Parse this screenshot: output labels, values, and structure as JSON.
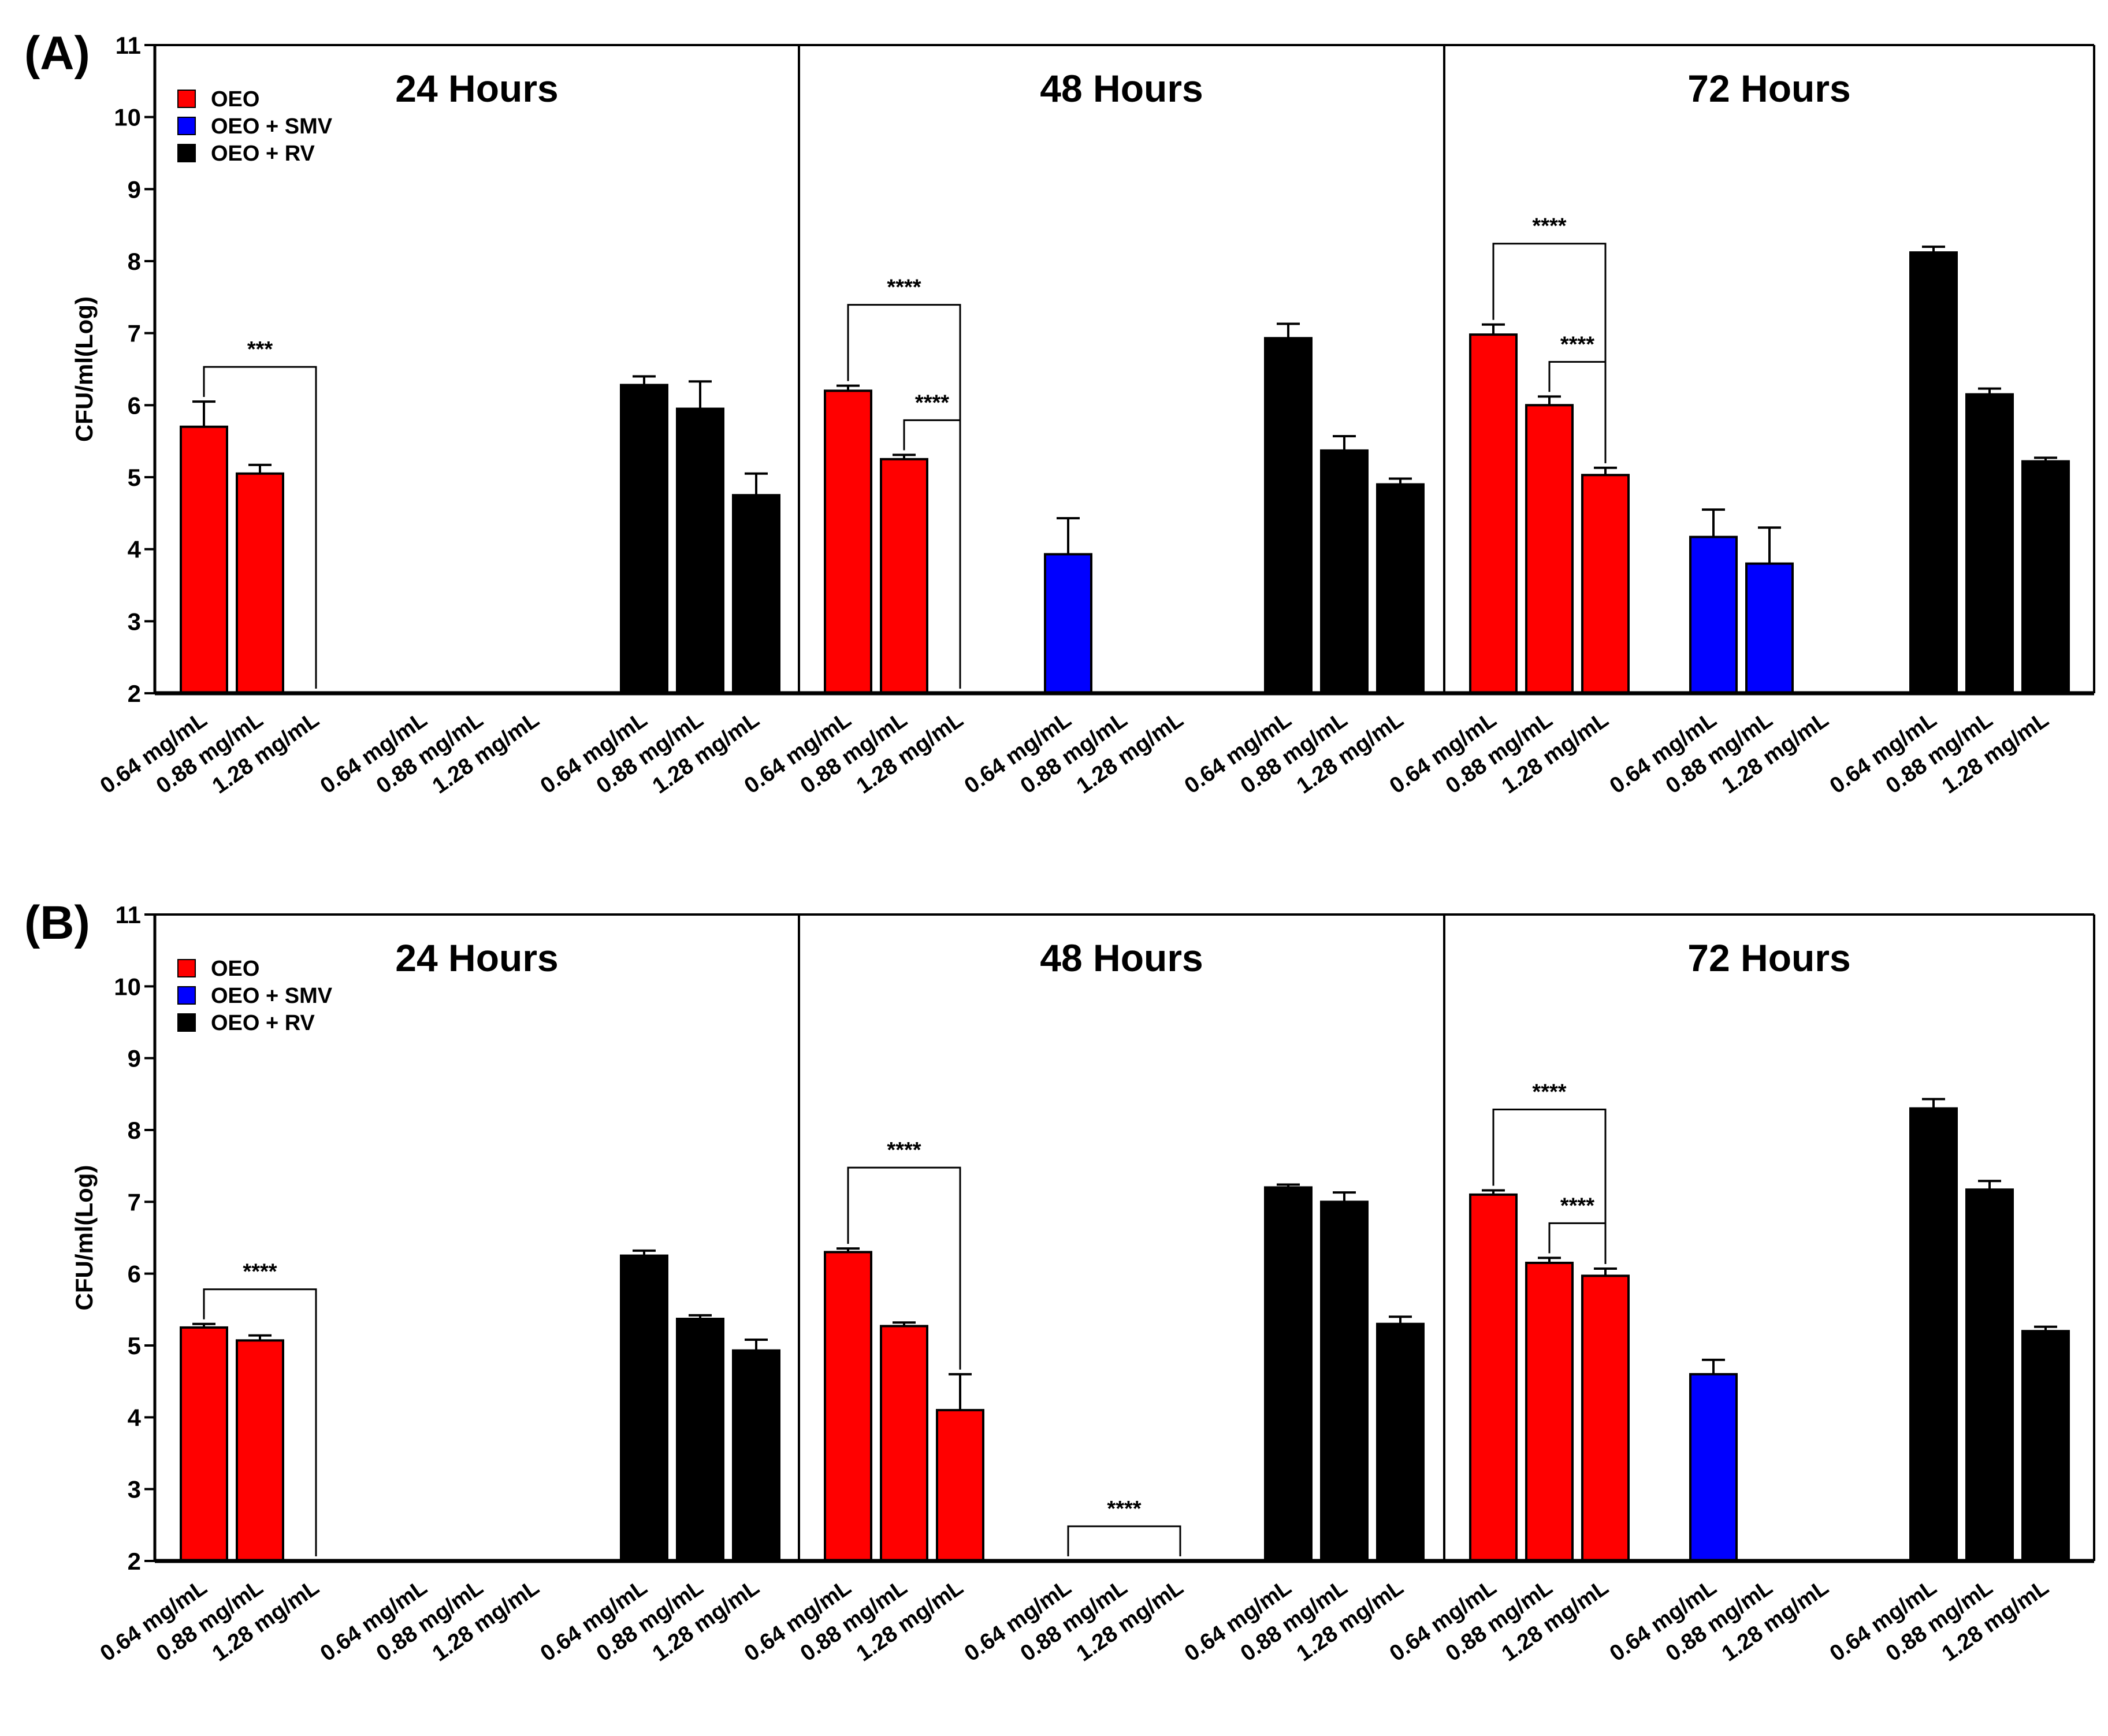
{
  "chart_data": [
    {
      "panel": "(A)",
      "type": "bar",
      "ylabel": "CFU/ml(Log)",
      "ylim": [
        2,
        11
      ],
      "yticks": [
        2,
        3,
        4,
        5,
        6,
        7,
        8,
        9,
        10,
        11
      ],
      "legend": [
        {
          "label": "OEO",
          "color": "#ff0000"
        },
        {
          "label": "OEO + SMV",
          "color": "#0000ff"
        },
        {
          "label": "OEO + RV",
          "color": "#000000"
        }
      ],
      "categories": [
        "0.64 mg/mL",
        "0.88 mg/mL",
        "1.28 mg/mL"
      ],
      "groups": [
        {
          "title": "24 Hours",
          "series": [
            {
              "name": "OEO",
              "values": [
                5.7,
                5.05,
                null
              ],
              "errors": [
                0.35,
                0.12,
                null
              ]
            },
            {
              "name": "OEO + SMV",
              "values": [
                null,
                null,
                null
              ],
              "errors": [
                null,
                null,
                null
              ]
            },
            {
              "name": "OEO + RV",
              "values": [
                6.28,
                5.95,
                4.75
              ],
              "errors": [
                0.12,
                0.38,
                0.3
              ]
            }
          ],
          "brackets": [
            {
              "from": [
                0,
                0
              ],
              "to": [
                2,
                0
              ],
              "label": "***"
            }
          ]
        },
        {
          "title": "48 Hours",
          "series": [
            {
              "name": "OEO",
              "values": [
                6.2,
                5.25,
                null
              ],
              "errors": [
                0.07,
                0.06,
                null
              ]
            },
            {
              "name": "OEO + SMV",
              "values": [
                3.93,
                null,
                null
              ],
              "errors": [
                0.5,
                null,
                null
              ]
            },
            {
              "name": "OEO + RV",
              "values": [
                6.93,
                5.37,
                4.9
              ],
              "errors": [
                0.2,
                0.2,
                0.08
              ]
            }
          ],
          "brackets": [
            {
              "from": [
                0,
                0
              ],
              "to": [
                2,
                0
              ],
              "label": "****"
            },
            {
              "from": [
                1,
                0
              ],
              "to": [
                2,
                0
              ],
              "label": "****"
            }
          ]
        },
        {
          "title": "72 Hours",
          "series": [
            {
              "name": "OEO",
              "values": [
                6.98,
                6.0,
                5.03
              ],
              "errors": [
                0.14,
                0.12,
                0.1
              ]
            },
            {
              "name": "OEO + SMV",
              "values": [
                4.17,
                3.8,
                null
              ],
              "errors": [
                0.38,
                0.5,
                null
              ]
            },
            {
              "name": "OEO + RV",
              "values": [
                8.12,
                6.15,
                5.22
              ],
              "errors": [
                0.08,
                0.08,
                0.05
              ]
            }
          ],
          "brackets": [
            {
              "from": [
                0,
                0
              ],
              "to": [
                2,
                0
              ],
              "label": "****"
            },
            {
              "from": [
                1,
                0
              ],
              "to": [
                2,
                0
              ],
              "label": "****"
            }
          ]
        }
      ]
    },
    {
      "panel": "(B)",
      "type": "bar",
      "ylabel": "CFU/ml(Log)",
      "ylim": [
        2,
        11
      ],
      "yticks": [
        2,
        3,
        4,
        5,
        6,
        7,
        8,
        9,
        10,
        11
      ],
      "legend": [
        {
          "label": "OEO",
          "color": "#ff0000"
        },
        {
          "label": "OEO + SMV",
          "color": "#0000ff"
        },
        {
          "label": "OEO + RV",
          "color": "#000000"
        }
      ],
      "categories": [
        "0.64 mg/mL",
        "0.88 mg/mL",
        "1.28 mg/mL"
      ],
      "groups": [
        {
          "title": "24 Hours",
          "series": [
            {
              "name": "OEO",
              "values": [
                5.25,
                5.07,
                null
              ],
              "errors": [
                0.05,
                0.07,
                null
              ]
            },
            {
              "name": "OEO + SMV",
              "values": [
                null,
                null,
                null
              ],
              "errors": [
                null,
                null,
                null
              ]
            },
            {
              "name": "OEO + RV",
              "values": [
                6.25,
                5.37,
                4.93
              ],
              "errors": [
                0.07,
                0.05,
                0.15
              ]
            }
          ],
          "brackets": [
            {
              "from": [
                0,
                0
              ],
              "to": [
                2,
                0
              ],
              "label": "****"
            }
          ]
        },
        {
          "title": "48 Hours",
          "series": [
            {
              "name": "OEO",
              "values": [
                6.3,
                5.27,
                4.1
              ],
              "errors": [
                0.05,
                0.05,
                0.5
              ]
            },
            {
              "name": "OEO + SMV",
              "values": [
                null,
                null,
                null
              ],
              "errors": [
                null,
                null,
                null
              ]
            },
            {
              "name": "OEO + RV",
              "values": [
                7.2,
                7.0,
                5.3
              ],
              "errors": [
                0.04,
                0.13,
                0.1
              ]
            }
          ],
          "brackets": [
            {
              "from": [
                0,
                0
              ],
              "to": [
                2,
                0
              ],
              "label": "****"
            },
            {
              "from": [
                0,
                1
              ],
              "to": [
                2,
                1
              ],
              "label": "****"
            }
          ]
        },
        {
          "title": "72 Hours",
          "series": [
            {
              "name": "OEO",
              "values": [
                7.1,
                6.15,
                5.97
              ],
              "errors": [
                0.06,
                0.07,
                0.1
              ]
            },
            {
              "name": "OEO + SMV",
              "values": [
                4.6,
                null,
                null
              ],
              "errors": [
                0.2,
                null,
                null
              ]
            },
            {
              "name": "OEO + RV",
              "values": [
                8.3,
                7.17,
                5.2
              ],
              "errors": [
                0.13,
                0.12,
                0.06
              ]
            }
          ],
          "brackets": [
            {
              "from": [
                0,
                0
              ],
              "to": [
                2,
                0
              ],
              "label": "****"
            },
            {
              "from": [
                1,
                0
              ],
              "to": [
                2,
                0
              ],
              "label": "****"
            }
          ]
        }
      ]
    }
  ]
}
